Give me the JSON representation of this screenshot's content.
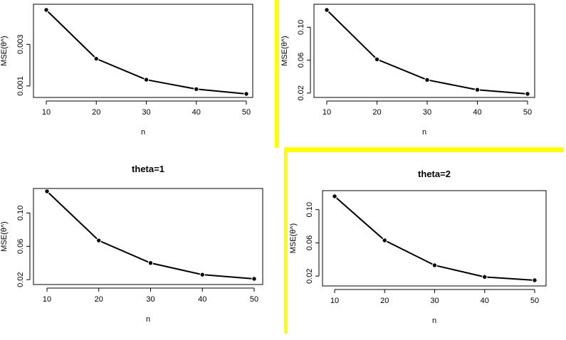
{
  "colors": {
    "divider": "#ffff00",
    "ink": "#000000",
    "background": "#ffffff"
  },
  "chart_data": [
    {
      "type": "line",
      "title": "",
      "xlabel": "n",
      "ylabel": "MSE(θ^)",
      "x": [
        10,
        20,
        30,
        40,
        50
      ],
      "series": [
        {
          "values": [
            0.00465,
            0.00231,
            0.0013,
            0.00085,
            0.00062
          ]
        }
      ],
      "xticks": [
        "10",
        "20",
        "30",
        "40",
        "50"
      ],
      "yticks": [
        0.001,
        0.003
      ],
      "ytick_labels": [
        "0.001",
        "0.003"
      ],
      "xlim": [
        10,
        50
      ],
      "ylim": [
        0.00062,
        0.00465
      ],
      "grid": false,
      "legend": "none"
    },
    {
      "type": "line",
      "title": "",
      "xlabel": "n",
      "ylabel": "MSE(θ^)",
      "x": [
        10,
        20,
        30,
        40,
        50
      ],
      "series": [
        {
          "values": [
            0.121,
            0.061,
            0.036,
            0.024,
            0.019
          ]
        }
      ],
      "xticks": [
        "10",
        "20",
        "30",
        "40",
        "50"
      ],
      "yticks": [
        0.02,
        0.06,
        0.1
      ],
      "ytick_labels": [
        "0.02",
        "0.06",
        "0.10"
      ],
      "xlim": [
        10,
        50
      ],
      "ylim": [
        0.019,
        0.121
      ],
      "grid": false,
      "legend": "none"
    },
    {
      "type": "line",
      "title": "theta=1",
      "xlabel": "n",
      "ylabel": "MSE(θ^)",
      "x": [
        10,
        20,
        30,
        40,
        50
      ],
      "series": [
        {
          "values": [
            0.126,
            0.067,
            0.04,
            0.026,
            0.021
          ]
        }
      ],
      "xticks": [
        "10",
        "20",
        "30",
        "40",
        "50"
      ],
      "yticks": [
        0.02,
        0.06,
        0.1
      ],
      "ytick_labels": [
        "0.02",
        "0.06",
        "0.10"
      ],
      "xlim": [
        10,
        50
      ],
      "ylim": [
        0.021,
        0.126
      ],
      "grid": false,
      "legend": "none"
    },
    {
      "type": "line",
      "title": "theta=2",
      "xlabel": "n",
      "ylabel": "MSE(θ^)",
      "x": [
        10,
        20,
        30,
        40,
        50
      ],
      "series": [
        {
          "values": [
            0.116,
            0.063,
            0.033,
            0.019,
            0.015
          ]
        }
      ],
      "xticks": [
        "10",
        "20",
        "30",
        "40",
        "50"
      ],
      "yticks": [
        0.02,
        0.06,
        0.1
      ],
      "ytick_labels": [
        "0.02",
        "0.06",
        "0.10"
      ],
      "xlim": [
        10,
        50
      ],
      "ylim": [
        0.015,
        0.116
      ],
      "grid": false,
      "legend": "none"
    }
  ]
}
